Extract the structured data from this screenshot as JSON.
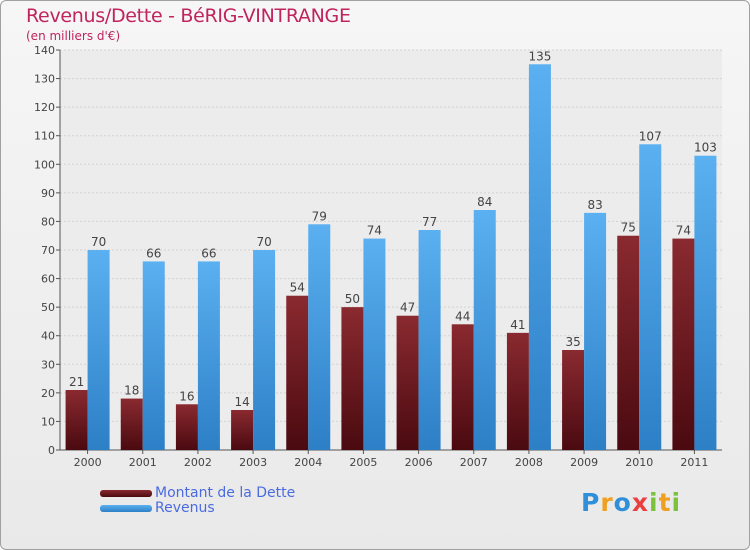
{
  "chart_data": {
    "type": "bar",
    "title": "Revenus/Dette - BéRIG-VINTRANGE",
    "subtitle": "(en milliers d'€)",
    "categories": [
      "2000",
      "2001",
      "2002",
      "2003",
      "2004",
      "2005",
      "2006",
      "2007",
      "2008",
      "2009",
      "2010",
      "2011"
    ],
    "series": [
      {
        "name": "Montant de la Dette",
        "color": "#7a1a20",
        "values": [
          21,
          18,
          16,
          14,
          54,
          50,
          47,
          44,
          41,
          35,
          75,
          74
        ]
      },
      {
        "name": "Revenus",
        "color": "#4da3e8",
        "values": [
          70,
          66,
          66,
          70,
          79,
          74,
          77,
          84,
          135,
          83,
          107,
          103
        ]
      }
    ],
    "ylim": [
      0,
      140
    ],
    "yticks": [
      0,
      10,
      20,
      30,
      40,
      50,
      60,
      70,
      80,
      90,
      100,
      110,
      120,
      130,
      140
    ],
    "grid": true,
    "legend_position": "bottom-left"
  },
  "logo": {
    "letters": [
      {
        "ch": "P",
        "color": "#2f8fd8"
      },
      {
        "ch": "r",
        "color": "#f0a020"
      },
      {
        "ch": "o",
        "color": "#2f8fd8"
      },
      {
        "ch": "x",
        "color": "#e84040"
      },
      {
        "ch": "i",
        "color": "#7cc23c"
      },
      {
        "ch": "t",
        "color": "#f0a020"
      },
      {
        "ch": "i",
        "color": "#7cc23c"
      }
    ]
  }
}
